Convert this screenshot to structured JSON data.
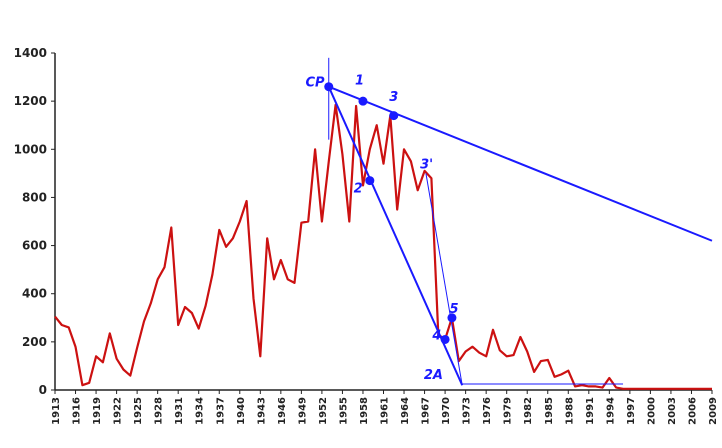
{
  "chart_data": {
    "type": "line",
    "title": "",
    "xlabel": "",
    "ylabel": "",
    "ylim": [
      0,
      1400
    ],
    "xlim": [
      1913,
      2009
    ],
    "yticks": [
      0,
      200,
      400,
      600,
      800,
      1000,
      1200,
      1400
    ],
    "xticks": [
      1913,
      1916,
      1919,
      1922,
      1925,
      1928,
      1931,
      1934,
      1937,
      1940,
      1943,
      1946,
      1949,
      1952,
      1955,
      1958,
      1961,
      1964,
      1967,
      1970,
      1973,
      1976,
      1979,
      1982,
      1985,
      1988,
      1991,
      1994,
      1997,
      2000,
      2003,
      2006,
      2009
    ],
    "grid": false,
    "legend": "none",
    "series": [
      {
        "color": "#cc1111",
        "x": [
          1913,
          1914,
          1915,
          1916,
          1917,
          1918,
          1919,
          1920,
          1921,
          1922,
          1923,
          1924,
          1925,
          1926,
          1927,
          1928,
          1929,
          1930,
          1931,
          1932,
          1933,
          1934,
          1935,
          1936,
          1937,
          1938,
          1939,
          1940,
          1941,
          1942,
          1943,
          1944,
          1945,
          1946,
          1947,
          1948,
          1949,
          1950,
          1951,
          1952,
          1953,
          1954,
          1955,
          1956,
          1957,
          1958,
          1959,
          1960,
          1961,
          1962,
          1963,
          1964,
          1965,
          1966,
          1967,
          1968,
          1969,
          1970,
          1971,
          1972,
          1973,
          1974,
          1975,
          1976,
          1977,
          1978,
          1979,
          1980,
          1981,
          1982,
          1983,
          1984,
          1985,
          1986,
          1987,
          1988,
          1989,
          1990,
          1991,
          1992,
          1993,
          1994,
          1995,
          1996,
          1997,
          1998,
          1999,
          2000,
          2001,
          2002,
          2003,
          2004,
          2005,
          2006,
          2007,
          2008,
          2009
        ],
        "y": [
          305,
          270,
          260,
          180,
          20,
          30,
          140,
          115,
          235,
          130,
          85,
          60,
          175,
          285,
          360,
          460,
          510,
          675,
          270,
          345,
          320,
          255,
          350,
          480,
          665,
          595,
          630,
          700,
          785,
          380,
          140,
          630,
          460,
          540,
          460,
          445,
          695,
          700,
          1000,
          700,
          950,
          1185,
          980,
          700,
          1180,
          850,
          1000,
          1100,
          940,
          1140,
          750,
          1000,
          950,
          830,
          910,
          880,
          230,
          210,
          300,
          120,
          160,
          180,
          155,
          140,
          250,
          165,
          140,
          145,
          220,
          160,
          75,
          120,
          125,
          55,
          65,
          80,
          15,
          20,
          15,
          15,
          10,
          50,
          10,
          5,
          5,
          5,
          5,
          5,
          5,
          5,
          5,
          5,
          5,
          5,
          5,
          5,
          5
        ]
      }
    ],
    "annotations": {
      "labels": [
        {
          "text": "CP",
          "at": [
            1951,
            1260
          ]
        },
        {
          "text": "1",
          "at": [
            1957.5,
            1270
          ]
        },
        {
          "text": "2",
          "at": [
            1957.3,
            820
          ]
        },
        {
          "text": "3",
          "at": [
            1962.5,
            1200
          ]
        },
        {
          "text": "3'",
          "at": [
            1967.3,
            920
          ]
        },
        {
          "text": "4",
          "at": [
            1968.8,
            210
          ]
        },
        {
          "text": "5",
          "at": [
            1971.3,
            320
          ]
        },
        {
          "text": "2A",
          "at": [
            1968.3,
            45
          ]
        }
      ],
      "points": [
        {
          "x": 1953,
          "y": 1260
        },
        {
          "x": 1958,
          "y": 1200
        },
        {
          "x": 1959,
          "y": 870
        },
        {
          "x": 1962.5,
          "y": 1140
        },
        {
          "x": 1970,
          "y": 210
        },
        {
          "x": 1971,
          "y": 300
        }
      ],
      "lines": [
        {
          "from": [
            1953,
            1260
          ],
          "to": [
            2009,
            620
          ],
          "width": 2
        },
        {
          "from": [
            1953,
            1260
          ],
          "to": [
            1972.5,
            20
          ],
          "width": 2
        },
        {
          "from": [
            1967.2,
            900
          ],
          "to": [
            1972.5,
            20
          ],
          "width": 1
        },
        {
          "from": [
            1972.5,
            25
          ],
          "to": [
            1996,
            25
          ],
          "width": 1
        },
        {
          "from": [
            1953,
            1380
          ],
          "to": [
            1953,
            1040
          ],
          "width": 1
        }
      ]
    }
  }
}
